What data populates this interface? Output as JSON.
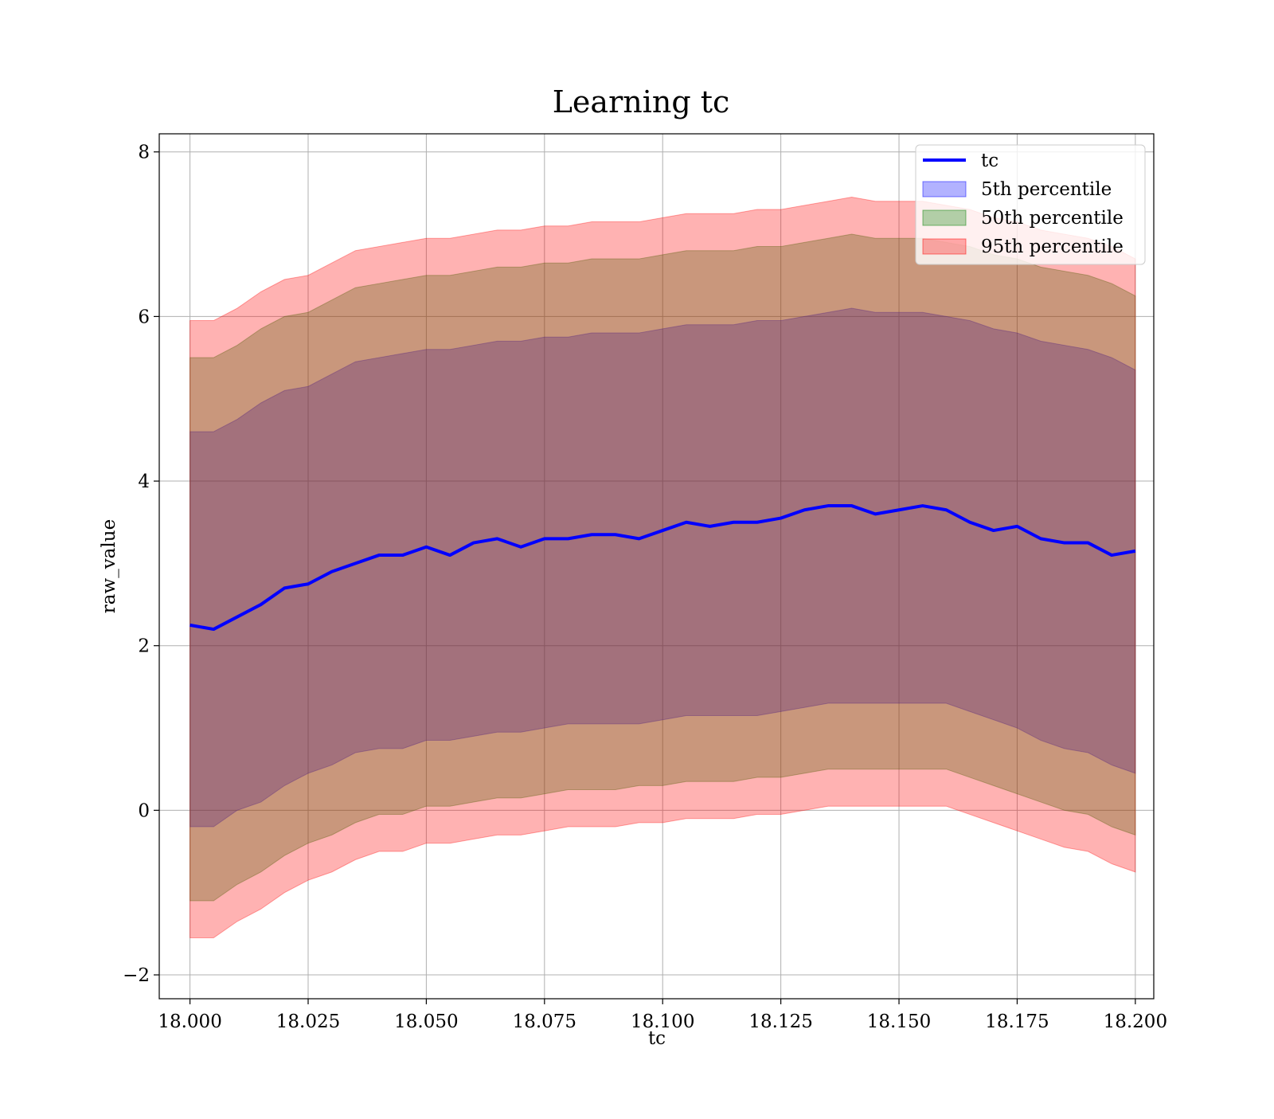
{
  "chart_data": {
    "type": "area",
    "title": "Learning tc",
    "xlabel": "tc",
    "ylabel": "raw_value",
    "xlim": [
      17.9935,
      18.2039
    ],
    "ylim": [
      -2.29,
      8.22
    ],
    "grid": true,
    "legend_position": "upper right",
    "x_ticks": [
      18.0,
      18.025,
      18.05,
      18.075,
      18.1,
      18.125,
      18.15,
      18.175,
      18.2
    ],
    "x_tick_labels": [
      "18.000",
      "18.025",
      "18.050",
      "18.075",
      "18.100",
      "18.125",
      "18.150",
      "18.175",
      "18.200"
    ],
    "y_ticks": [
      -2,
      0,
      2,
      4,
      6,
      8
    ],
    "y_tick_labels": [
      "−2",
      "0",
      "2",
      "4",
      "6",
      "8"
    ],
    "x": [
      18.0,
      18.005,
      18.01,
      18.015,
      18.02,
      18.025,
      18.03,
      18.035,
      18.04,
      18.045,
      18.05,
      18.055,
      18.06,
      18.065,
      18.07,
      18.075,
      18.08,
      18.085,
      18.09,
      18.095,
      18.1,
      18.105,
      18.11,
      18.115,
      18.12,
      18.125,
      18.13,
      18.135,
      18.14,
      18.145,
      18.15,
      18.155,
      18.16,
      18.165,
      18.17,
      18.175,
      18.18,
      18.185,
      18.19,
      18.195,
      18.2
    ],
    "series": [
      {
        "name": "tc",
        "kind": "line",
        "color": "#0000ff",
        "values": [
          2.25,
          2.2,
          2.35,
          2.5,
          2.7,
          2.75,
          2.9,
          3.0,
          3.1,
          3.1,
          3.2,
          3.1,
          3.25,
          3.3,
          3.2,
          3.3,
          3.3,
          3.35,
          3.35,
          3.3,
          3.4,
          3.5,
          3.45,
          3.5,
          3.5,
          3.55,
          3.65,
          3.7,
          3.7,
          3.6,
          3.65,
          3.7,
          3.65,
          3.5,
          3.4,
          3.45,
          3.3,
          3.25,
          3.25,
          3.1,
          3.15
        ]
      },
      {
        "name": "5th percentile",
        "kind": "band",
        "color": "#0000ff",
        "lower": [
          -0.2,
          -0.2,
          0.0,
          0.1,
          0.3,
          0.45,
          0.55,
          0.7,
          0.75,
          0.75,
          0.85,
          0.85,
          0.9,
          0.95,
          0.95,
          1.0,
          1.05,
          1.05,
          1.05,
          1.05,
          1.1,
          1.15,
          1.15,
          1.15,
          1.15,
          1.2,
          1.25,
          1.3,
          1.3,
          1.3,
          1.3,
          1.3,
          1.3,
          1.2,
          1.1,
          1.0,
          0.85,
          0.75,
          0.7,
          0.55,
          0.45
        ],
        "upper": [
          4.6,
          4.6,
          4.75,
          4.95,
          5.1,
          5.15,
          5.3,
          5.45,
          5.5,
          5.55,
          5.6,
          5.6,
          5.65,
          5.7,
          5.7,
          5.75,
          5.75,
          5.8,
          5.8,
          5.8,
          5.85,
          5.9,
          5.9,
          5.9,
          5.95,
          5.95,
          6.0,
          6.05,
          6.1,
          6.05,
          6.05,
          6.05,
          6.0,
          5.95,
          5.85,
          5.8,
          5.7,
          5.65,
          5.6,
          5.5,
          5.35
        ]
      },
      {
        "name": "50th percentile",
        "kind": "band",
        "color": "#008000",
        "lower": [
          -1.1,
          -1.1,
          -0.9,
          -0.75,
          -0.55,
          -0.4,
          -0.3,
          -0.15,
          -0.05,
          -0.05,
          0.05,
          0.05,
          0.1,
          0.15,
          0.15,
          0.2,
          0.25,
          0.25,
          0.25,
          0.3,
          0.3,
          0.35,
          0.35,
          0.35,
          0.4,
          0.4,
          0.45,
          0.5,
          0.5,
          0.5,
          0.5,
          0.5,
          0.5,
          0.4,
          0.3,
          0.2,
          0.1,
          0.0,
          -0.05,
          -0.2,
          -0.3
        ],
        "upper": [
          5.5,
          5.5,
          5.65,
          5.85,
          6.0,
          6.05,
          6.2,
          6.35,
          6.4,
          6.45,
          6.5,
          6.5,
          6.55,
          6.6,
          6.6,
          6.65,
          6.65,
          6.7,
          6.7,
          6.7,
          6.75,
          6.8,
          6.8,
          6.8,
          6.85,
          6.85,
          6.9,
          6.95,
          7.0,
          6.95,
          6.95,
          6.95,
          6.9,
          6.85,
          6.75,
          6.7,
          6.6,
          6.55,
          6.5,
          6.4,
          6.25
        ]
      },
      {
        "name": "95th percentile",
        "kind": "band",
        "color": "#ff0000",
        "lower": [
          -1.55,
          -1.55,
          -1.35,
          -1.2,
          -1.0,
          -0.85,
          -0.75,
          -0.6,
          -0.5,
          -0.5,
          -0.4,
          -0.4,
          -0.35,
          -0.3,
          -0.3,
          -0.25,
          -0.2,
          -0.2,
          -0.2,
          -0.15,
          -0.15,
          -0.1,
          -0.1,
          -0.1,
          -0.05,
          -0.05,
          0.0,
          0.05,
          0.05,
          0.05,
          0.05,
          0.05,
          0.05,
          -0.05,
          -0.15,
          -0.25,
          -0.35,
          -0.45,
          -0.5,
          -0.65,
          -0.75
        ],
        "upper": [
          5.95,
          5.95,
          6.1,
          6.3,
          6.45,
          6.5,
          6.65,
          6.8,
          6.85,
          6.9,
          6.95,
          6.95,
          7.0,
          7.05,
          7.05,
          7.1,
          7.1,
          7.15,
          7.15,
          7.15,
          7.2,
          7.25,
          7.25,
          7.25,
          7.3,
          7.3,
          7.35,
          7.4,
          7.45,
          7.4,
          7.4,
          7.4,
          7.35,
          7.3,
          7.2,
          7.15,
          7.05,
          7.0,
          6.95,
          6.85,
          6.7
        ]
      }
    ]
  }
}
